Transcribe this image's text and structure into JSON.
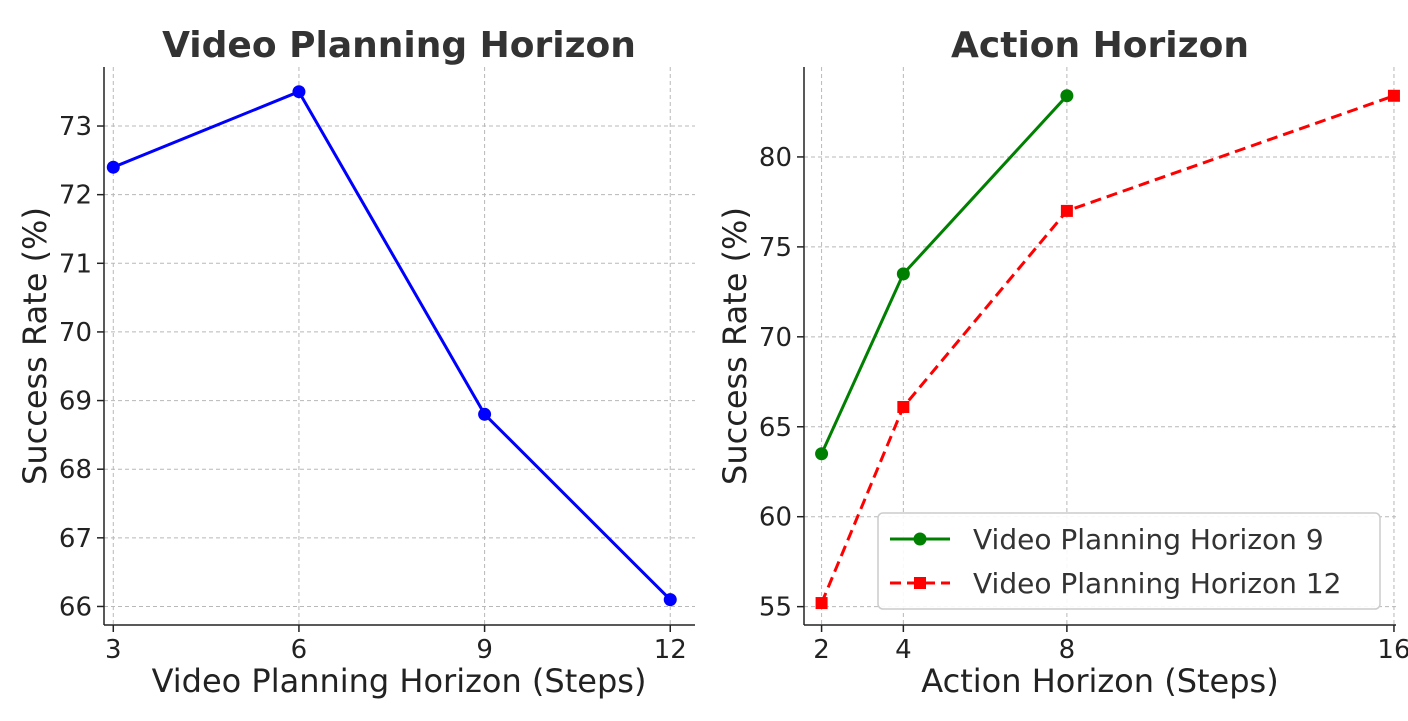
{
  "chart_data": [
    {
      "type": "line",
      "title": "Video Planning Horizon",
      "xlabel": "Video Planning Horizon (Steps)",
      "ylabel": "Success Rate (%)",
      "x": [
        3,
        6,
        9,
        12
      ],
      "xticks": [
        "3",
        "6",
        "9",
        "12"
      ],
      "yticks": [
        "66",
        "67",
        "68",
        "69",
        "70",
        "71",
        "72",
        "73"
      ],
      "xlim": [
        2.85,
        12.4
      ],
      "ylim": [
        65.73,
        73.86
      ],
      "grid": true,
      "series": [
        {
          "values": [
            72.4,
            73.5,
            68.8,
            66.1
          ],
          "color": "#0000ff",
          "marker": "circle",
          "linestyle": "solid"
        }
      ]
    },
    {
      "type": "line",
      "title": "Action Horizon",
      "xlabel": "Action Horizon (Steps)",
      "ylabel": "Success Rate (%)",
      "xticks": [
        "2",
        "4",
        "8",
        "16"
      ],
      "yticks": [
        "55",
        "60",
        "65",
        "70",
        "75",
        "80"
      ],
      "xlim": [
        1.57,
        16.05
      ],
      "ylim": [
        53.98,
        85.0
      ],
      "grid": true,
      "legend": "bottom-right",
      "series": [
        {
          "name": "Video Planning Horizon 9",
          "x": [
            2,
            4,
            8
          ],
          "values": [
            63.5,
            73.5,
            83.4
          ],
          "color": "#008000",
          "marker": "circle",
          "linestyle": "solid"
        },
        {
          "name": "Video Planning Horizon 12",
          "x": [
            2,
            4,
            8,
            16
          ],
          "values": [
            55.2,
            66.1,
            77.0,
            83.4
          ],
          "color": "#ff0000",
          "marker": "square",
          "linestyle": "dashed"
        }
      ]
    }
  ]
}
